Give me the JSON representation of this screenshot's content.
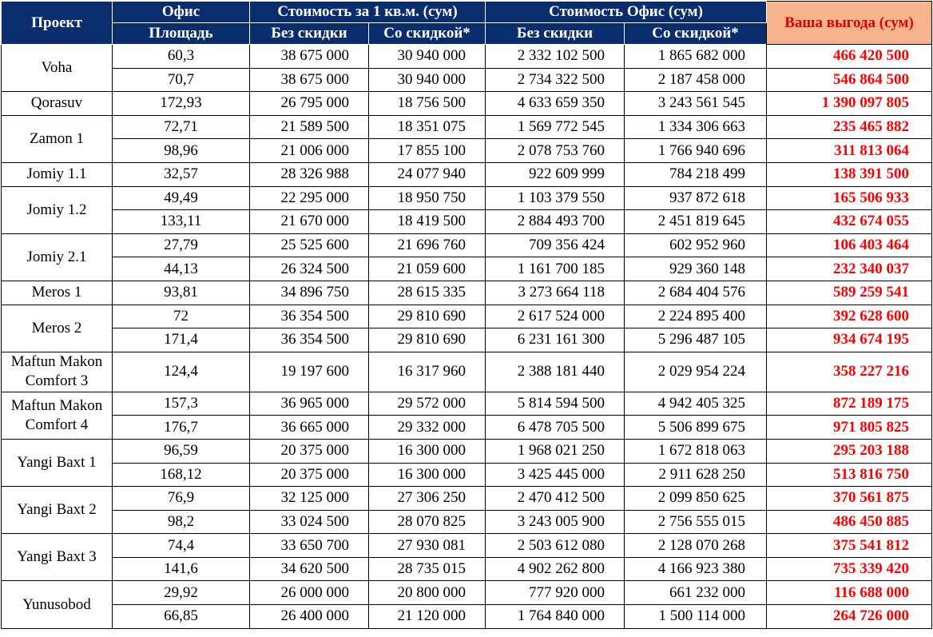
{
  "headers": {
    "project": "Проект",
    "office": "Офис",
    "area": "Площадь",
    "price_per_m2": "Стоимость за 1 кв.м. (сум)",
    "office_price": "Стоимость Офис (сум)",
    "no_discount": "Без скидки",
    "with_discount": "Со скидкой*",
    "profit": "Ваша выгода (сум)"
  },
  "colors": {
    "header_bg": "#0a2d6e",
    "header_text": "#ffffff",
    "profit_header_bg": "#f5b48e",
    "profit_text": "#ff0000"
  },
  "projects": [
    {
      "name": "Voha",
      "rows": [
        {
          "area": "60,3",
          "price_m2": "38 675 000",
          "price_m2_disc": "30 940 000",
          "office": "2 332 102 500",
          "office_disc": "1 865 682 000",
          "profit": "466 420 500"
        },
        {
          "area": "70,7",
          "price_m2": "38 675 000",
          "price_m2_disc": "30 940 000",
          "office": "2 734 322 500",
          "office_disc": "2 187 458 000",
          "profit": "546 864 500"
        }
      ]
    },
    {
      "name": "Qorasuv",
      "rows": [
        {
          "area": "172,93",
          "price_m2": "26 795 000",
          "price_m2_disc": "18 756 500",
          "office": "4 633 659 350",
          "office_disc": "3 243 561 545",
          "profit": "1 390 097 805"
        }
      ]
    },
    {
      "name": "Zamon 1",
      "rows": [
        {
          "area": "72,71",
          "price_m2": "21 589 500",
          "price_m2_disc": "18 351 075",
          "office": "1 569 772 545",
          "office_disc": "1 334 306 663",
          "profit": "235 465 882"
        },
        {
          "area": "98,96",
          "price_m2": "21 006 000",
          "price_m2_disc": "17 855 100",
          "office": "2 078 753 760",
          "office_disc": "1 766 940 696",
          "profit": "311 813 064"
        }
      ]
    },
    {
      "name": "Jomiy 1.1",
      "rows": [
        {
          "area": "32,57",
          "price_m2": "28 326 988",
          "price_m2_disc": "24 077 940",
          "office": "922 609 999",
          "office_disc": "784 218 499",
          "profit": "138 391 500"
        }
      ]
    },
    {
      "name": "Jomiy 1.2",
      "rows": [
        {
          "area": "49,49",
          "price_m2": "22 295 000",
          "price_m2_disc": "18 950 750",
          "office": "1 103 379 550",
          "office_disc": "937 872 618",
          "profit": "165 506 933"
        },
        {
          "area": "133,11",
          "price_m2": "21 670 000",
          "price_m2_disc": "18 419 500",
          "office": "2 884 493 700",
          "office_disc": "2 451 819 645",
          "profit": "432 674 055"
        }
      ]
    },
    {
      "name": "Jomiy 2.1",
      "rows": [
        {
          "area": "27,79",
          "price_m2": "25 525 600",
          "price_m2_disc": "21 696 760",
          "office": "709 356 424",
          "office_disc": "602 952 960",
          "profit": "106 403 464"
        },
        {
          "area": "44,13",
          "price_m2": "26 324 500",
          "price_m2_disc": "21 059 600",
          "office": "1 161 700 185",
          "office_disc": "929 360 148",
          "profit": "232 340 037"
        }
      ]
    },
    {
      "name": "Meros 1",
      "rows": [
        {
          "area": "93,81",
          "price_m2": "34 896 750",
          "price_m2_disc": "28 615 335",
          "office": "3 273 664 118",
          "office_disc": "2 684 404 576",
          "profit": "589 259 541"
        }
      ]
    },
    {
      "name": "Meros 2",
      "rows": [
        {
          "area": "72",
          "price_m2": "36 354 500",
          "price_m2_disc": "29 810 690",
          "office": "2 617 524 000",
          "office_disc": "2 224 895 400",
          "profit": "392 628 600"
        },
        {
          "area": "171,4",
          "price_m2": "36 354 500",
          "price_m2_disc": "29 810 690",
          "office": "6 231 161 300",
          "office_disc": "5 296 487 105",
          "profit": "934 674 195"
        }
      ]
    },
    {
      "name": "Maftun Makon Comfort 3",
      "tall": true,
      "rows": [
        {
          "area": "124,4",
          "price_m2": "19 197 600",
          "price_m2_disc": "16 317 960",
          "office": "2 388 181 440",
          "office_disc": "2 029 954 224",
          "profit": "358 227 216"
        }
      ]
    },
    {
      "name": "Maftun Makon Comfort 4",
      "rows": [
        {
          "area": "157,3",
          "price_m2": "36 965 000",
          "price_m2_disc": "29 572 000",
          "office": "5 814 594 500",
          "office_disc": "4 942 405 325",
          "profit": "872 189 175"
        },
        {
          "area": "176,7",
          "price_m2": "36 665 000",
          "price_m2_disc": "29 332 000",
          "office": "6 478 705 500",
          "office_disc": "5 506 899 675",
          "profit": "971 805 825"
        }
      ]
    },
    {
      "name": "Yangi Baxt 1",
      "rows": [
        {
          "area": "96,59",
          "price_m2": "20 375 000",
          "price_m2_disc": "16 300 000",
          "office": "1 968 021 250",
          "office_disc": "1 672 818 063",
          "profit": "295 203 188"
        },
        {
          "area": "168,12",
          "price_m2": "20 375 000",
          "price_m2_disc": "16 300 000",
          "office": "3 425 445 000",
          "office_disc": "2 911 628 250",
          "profit": "513 816 750"
        }
      ]
    },
    {
      "name": "Yangi Baxt 2",
      "rows": [
        {
          "area": "76,9",
          "price_m2": "32 125 000",
          "price_m2_disc": "27 306 250",
          "office": "2 470 412 500",
          "office_disc": "2 099 850 625",
          "profit": "370 561 875"
        },
        {
          "area": "98,2",
          "price_m2": "33 024 500",
          "price_m2_disc": "28 070 825",
          "office": "3 243 005 900",
          "office_disc": "2 756 555 015",
          "profit": "486 450 885"
        }
      ]
    },
    {
      "name": "Yangi Baxt 3",
      "rows": [
        {
          "area": "74,4",
          "price_m2": "33 650 700",
          "price_m2_disc": "27 930 081",
          "office": "2 503 612 080",
          "office_disc": "2 128 070 268",
          "profit": "375 541 812"
        },
        {
          "area": "141,6",
          "price_m2": "34 620 500",
          "price_m2_disc": "28 735 015",
          "office": "4 902 262 800",
          "office_disc": "4 166 923 380",
          "profit": "735 339 420"
        }
      ]
    },
    {
      "name": "Yunusobod",
      "rows": [
        {
          "area": "29,92",
          "price_m2": "26 000 000",
          "price_m2_disc": "20 800 000",
          "office": "777 920 000",
          "office_disc": "661 232 000",
          "profit": "116 688 000"
        },
        {
          "area": "66,85",
          "price_m2": "26 400 000",
          "price_m2_disc": "21 120 000",
          "office": "1 764 840 000",
          "office_disc": "1 500 114 000",
          "profit": "264 726 000"
        }
      ]
    }
  ]
}
